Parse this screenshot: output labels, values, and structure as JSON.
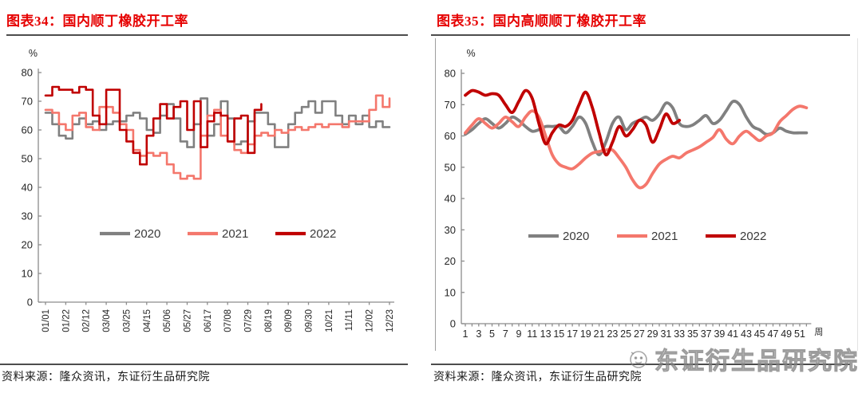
{
  "accent": {
    "title_red": "#e60000",
    "rule_gray": "#4d4d4d",
    "axis_gray": "#8c8c8c",
    "series_2020": "#808080",
    "series_2021": "#f4776c",
    "series_2022": "#c00000"
  },
  "figures": [
    {
      "title": "图表34：国内顺丁橡胶开工率",
      "source": "资料来源：隆众资讯，东证衍生品研究院"
    },
    {
      "title": "图表35：国内高顺顺丁橡胶开工率",
      "source": "资料来源：隆众资讯，东证衍生品研究院"
    }
  ],
  "watermark": {
    "text": "东证衍生品研究院",
    "logo": "circle-face-logo"
  },
  "chart_data": [
    {
      "type": "line",
      "title": "图表34：国内顺丁橡胶开工率",
      "ylabel": "%",
      "ylim": [
        0,
        80
      ],
      "yticks": [
        0,
        10,
        20,
        30,
        40,
        50,
        60,
        70,
        80
      ],
      "x_unit": "周 (weekly, labels every 3 weeks)",
      "xtick_labels": [
        "01/01",
        "01/22",
        "02/12",
        "03/04",
        "03/25",
        "04/15",
        "05/06",
        "05/27",
        "06/17",
        "07/08",
        "07/29",
        "08/19",
        "09/09",
        "09/30",
        "10/21",
        "11/11",
        "12/02",
        "12/23"
      ],
      "x_axis_title": "",
      "grid": false,
      "legend_position": "inside-bottom-center",
      "line_style": "step",
      "series": [
        {
          "name": "2020",
          "color": "#808080",
          "values": [
            66,
            62,
            58,
            57,
            62,
            64,
            62,
            63,
            60,
            62,
            63,
            63,
            65,
            66,
            64,
            60,
            59,
            65,
            69,
            64,
            56,
            54,
            62,
            71,
            58,
            62,
            70,
            64,
            55,
            56,
            63,
            66,
            66,
            62,
            54,
            54,
            62,
            66,
            68,
            70,
            66,
            70,
            70,
            65,
            62,
            65,
            62,
            65,
            61,
            63,
            61,
            61
          ]
        },
        {
          "name": "2021",
          "color": "#f4776c",
          "values": [
            67,
            66,
            62,
            60,
            65,
            66,
            61,
            60,
            68,
            68,
            66,
            62,
            60,
            53,
            51,
            52,
            51,
            52,
            48,
            45,
            43,
            44,
            43,
            58,
            65,
            67,
            58,
            56,
            53,
            52,
            55,
            58,
            59,
            58,
            60,
            59,
            60,
            61,
            60,
            61,
            62,
            61,
            62,
            62,
            61,
            63,
            63,
            63,
            67,
            72,
            68,
            71
          ]
        },
        {
          "name": "2022",
          "color": "#c00000",
          "values": [
            72,
            75,
            74,
            74,
            73,
            75,
            74,
            65,
            62,
            74,
            74,
            60,
            56,
            52,
            48,
            58,
            64,
            69,
            64,
            68,
            70,
            60,
            70,
            54,
            63,
            66,
            65,
            56,
            64,
            65,
            52,
            67,
            69
          ]
        }
      ]
    },
    {
      "type": "line",
      "title": "图表35：国内高顺顺丁橡胶开工率",
      "ylabel": "%",
      "ylim": [
        0,
        80
      ],
      "yticks": [
        0,
        10,
        20,
        30,
        40,
        50,
        60,
        70,
        80
      ],
      "x_unit": "周 (weekly, labels every 2 weeks)",
      "xtick_labels": [
        "1",
        "3",
        "5",
        "7",
        "9",
        "11",
        "13",
        "15",
        "17",
        "19",
        "21",
        "23",
        "25",
        "27",
        "29",
        "31",
        "33",
        "35",
        "37",
        "39",
        "41",
        "43",
        "45",
        "47",
        "49",
        "51"
      ],
      "x_axis_title": "周",
      "grid": false,
      "legend_position": "inside-bottom-center",
      "line_style": "smooth",
      "series": [
        {
          "name": "2020",
          "color": "#808080",
          "values": [
            60.5,
            62,
            64,
            65.5,
            64,
            62.5,
            64,
            66,
            65,
            63,
            61.5,
            62,
            63,
            63,
            63,
            61,
            63,
            66,
            64,
            58,
            54,
            58,
            64,
            66,
            62,
            64,
            65,
            66,
            65,
            67,
            70.5,
            69,
            64,
            63,
            63.5,
            65,
            66.5,
            64,
            65,
            68,
            71,
            70,
            66,
            63,
            62,
            60.5,
            61,
            62.5,
            61.5,
            61,
            61,
            61
          ]
        },
        {
          "name": "2021",
          "color": "#f4776c",
          "values": [
            61,
            63.5,
            65.5,
            64,
            62.5,
            64,
            66,
            64.5,
            63,
            66,
            68,
            66,
            60,
            54,
            51,
            50,
            49.5,
            51,
            53,
            54.5,
            55,
            55.5,
            55.5,
            53,
            50,
            46,
            43.5,
            44.5,
            48,
            51,
            52.5,
            53.5,
            53,
            54.5,
            55.5,
            56.5,
            58,
            59.5,
            62,
            59,
            57.5,
            60,
            61.5,
            60,
            58.5,
            60,
            61,
            64.5,
            66.5,
            68.5,
            69.5,
            69
          ]
        },
        {
          "name": "2022",
          "color": "#c00000",
          "values": [
            73,
            74.5,
            74,
            73,
            73.5,
            73,
            70,
            67.5,
            71,
            74.5,
            72,
            64,
            57.5,
            61,
            63.5,
            63,
            65,
            70,
            74,
            69,
            61,
            54,
            58,
            63,
            60,
            62,
            65,
            63.5,
            58,
            62,
            67,
            64,
            65
          ]
        }
      ]
    }
  ]
}
